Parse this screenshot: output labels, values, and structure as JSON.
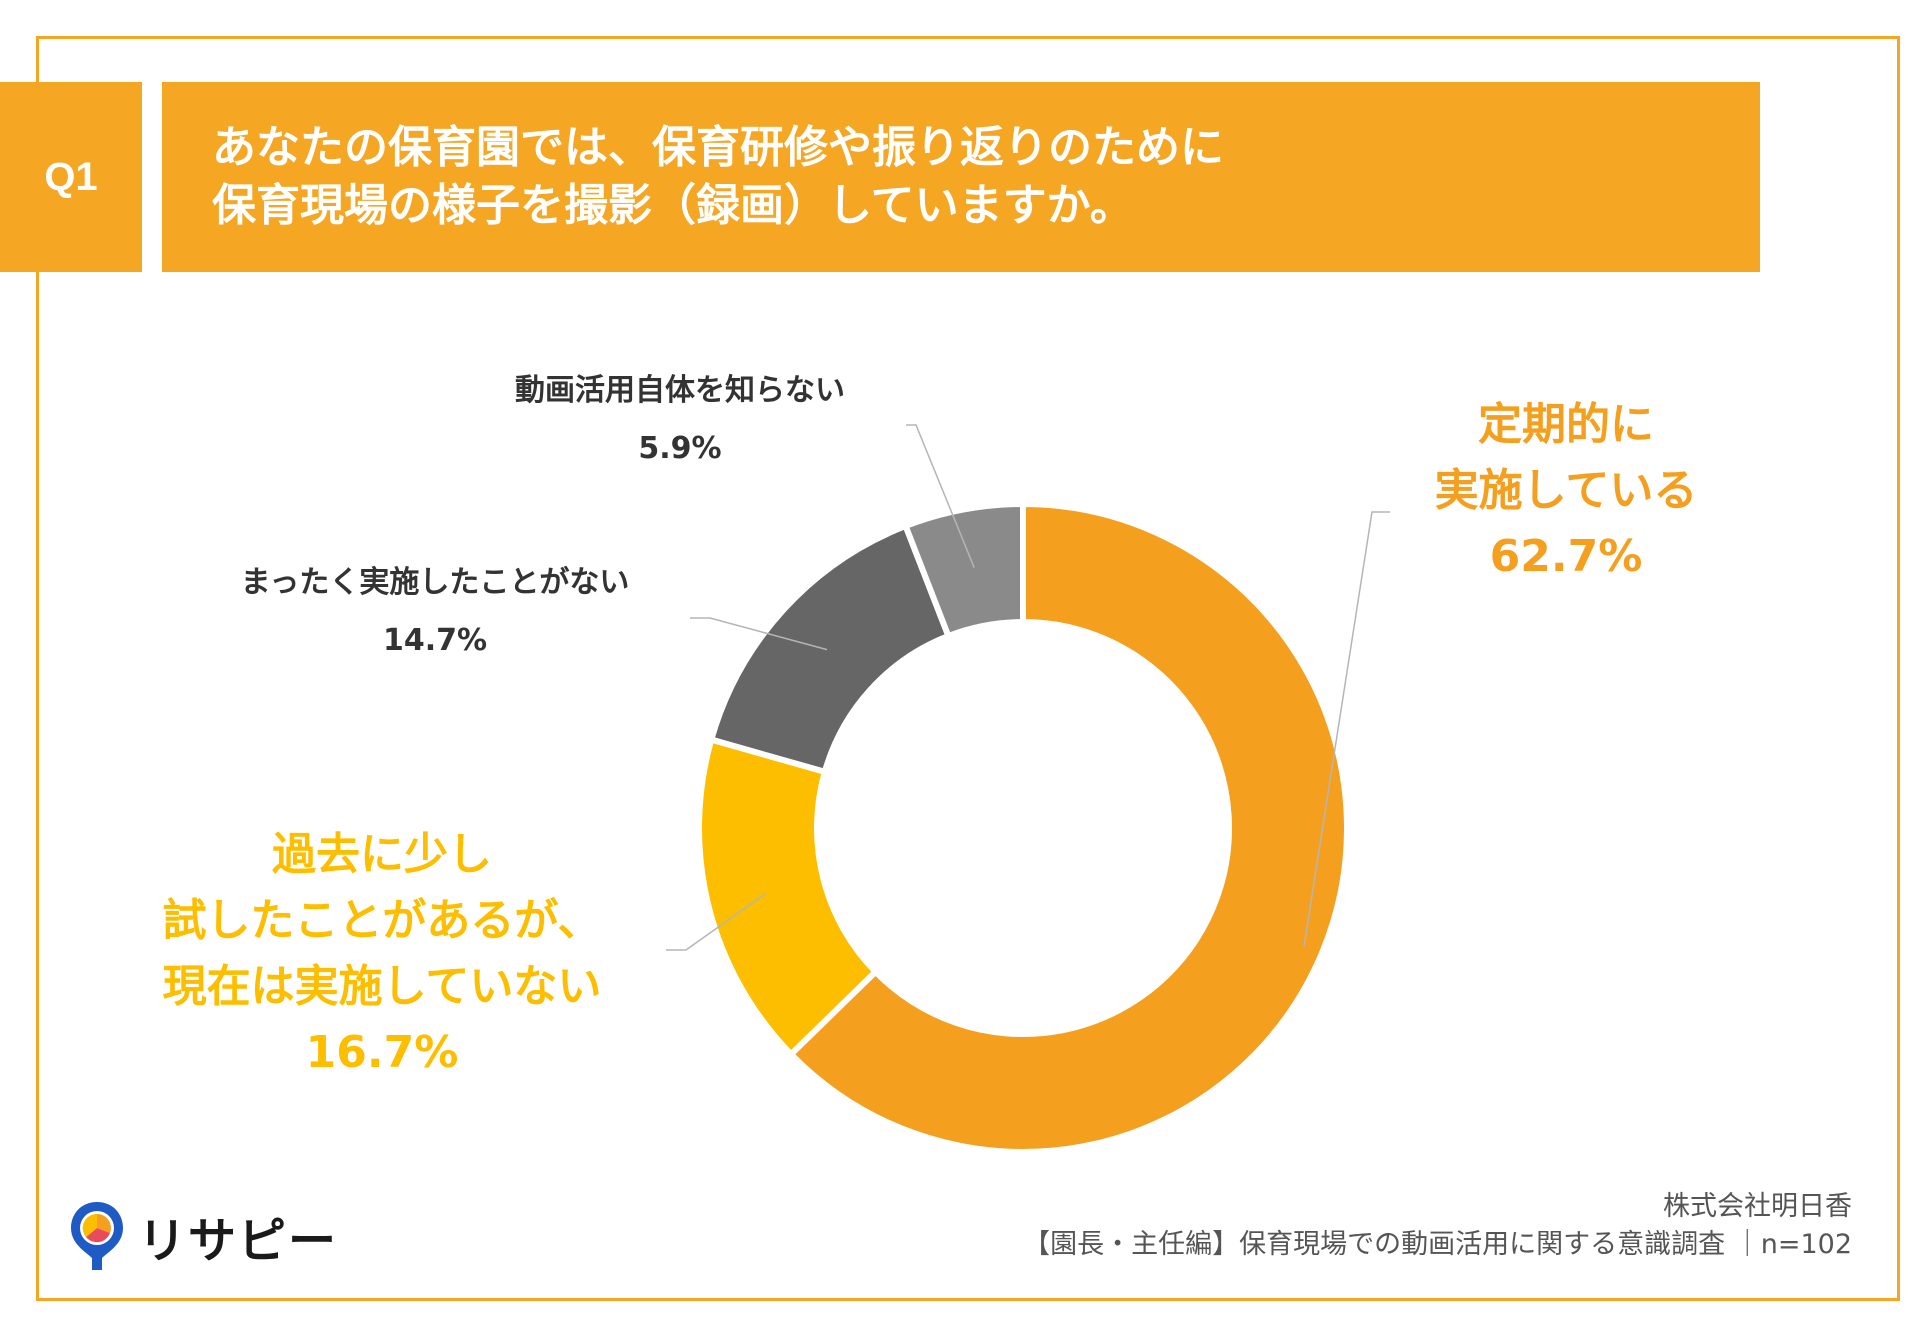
{
  "question": {
    "badge": "Q1",
    "line1": "あなたの保育園では、保育研修や振り返りのために",
    "line2": "保育現場の様子を撮影（録画）していますか。"
  },
  "chart_data": {
    "type": "pie",
    "variant": "donut",
    "slices": [
      {
        "label": "定期的に実施している",
        "lines": [
          "定期的に",
          "実施している"
        ],
        "pct_text": "62.7%",
        "value": 62.7,
        "color": "#F59F1E",
        "label_color": "#F59F1E"
      },
      {
        "label": "過去に少し試したことがあるが、現在は実施していない",
        "lines": [
          "過去に少し",
          "試したことがあるが、",
          "現在は実施していない"
        ],
        "pct_text": "16.7%",
        "value": 16.7,
        "color": "#FDBE00",
        "label_color": "#FDBE00"
      },
      {
        "label": "まったく実施したことがない",
        "lines": [
          "まったく実施したことがない"
        ],
        "pct_text": "14.7%",
        "value": 14.7,
        "color": "#666666",
        "label_color": "#333333"
      },
      {
        "label": "動画活用自体を知らない",
        "lines": [
          "動画活用自体を知らない"
        ],
        "pct_text": "5.9%",
        "value": 5.9,
        "color": "#8A8A8A",
        "label_color": "#333333"
      }
    ]
  },
  "logo": {
    "name": "リサピー",
    "icon": "pin-pie-icon"
  },
  "source": {
    "company": "株式会社明日香",
    "survey": "【園長・主任編】保育現場での動画活用に関する意識調査 ｜n=102"
  },
  "colors": {
    "accent": "#F5A623"
  }
}
